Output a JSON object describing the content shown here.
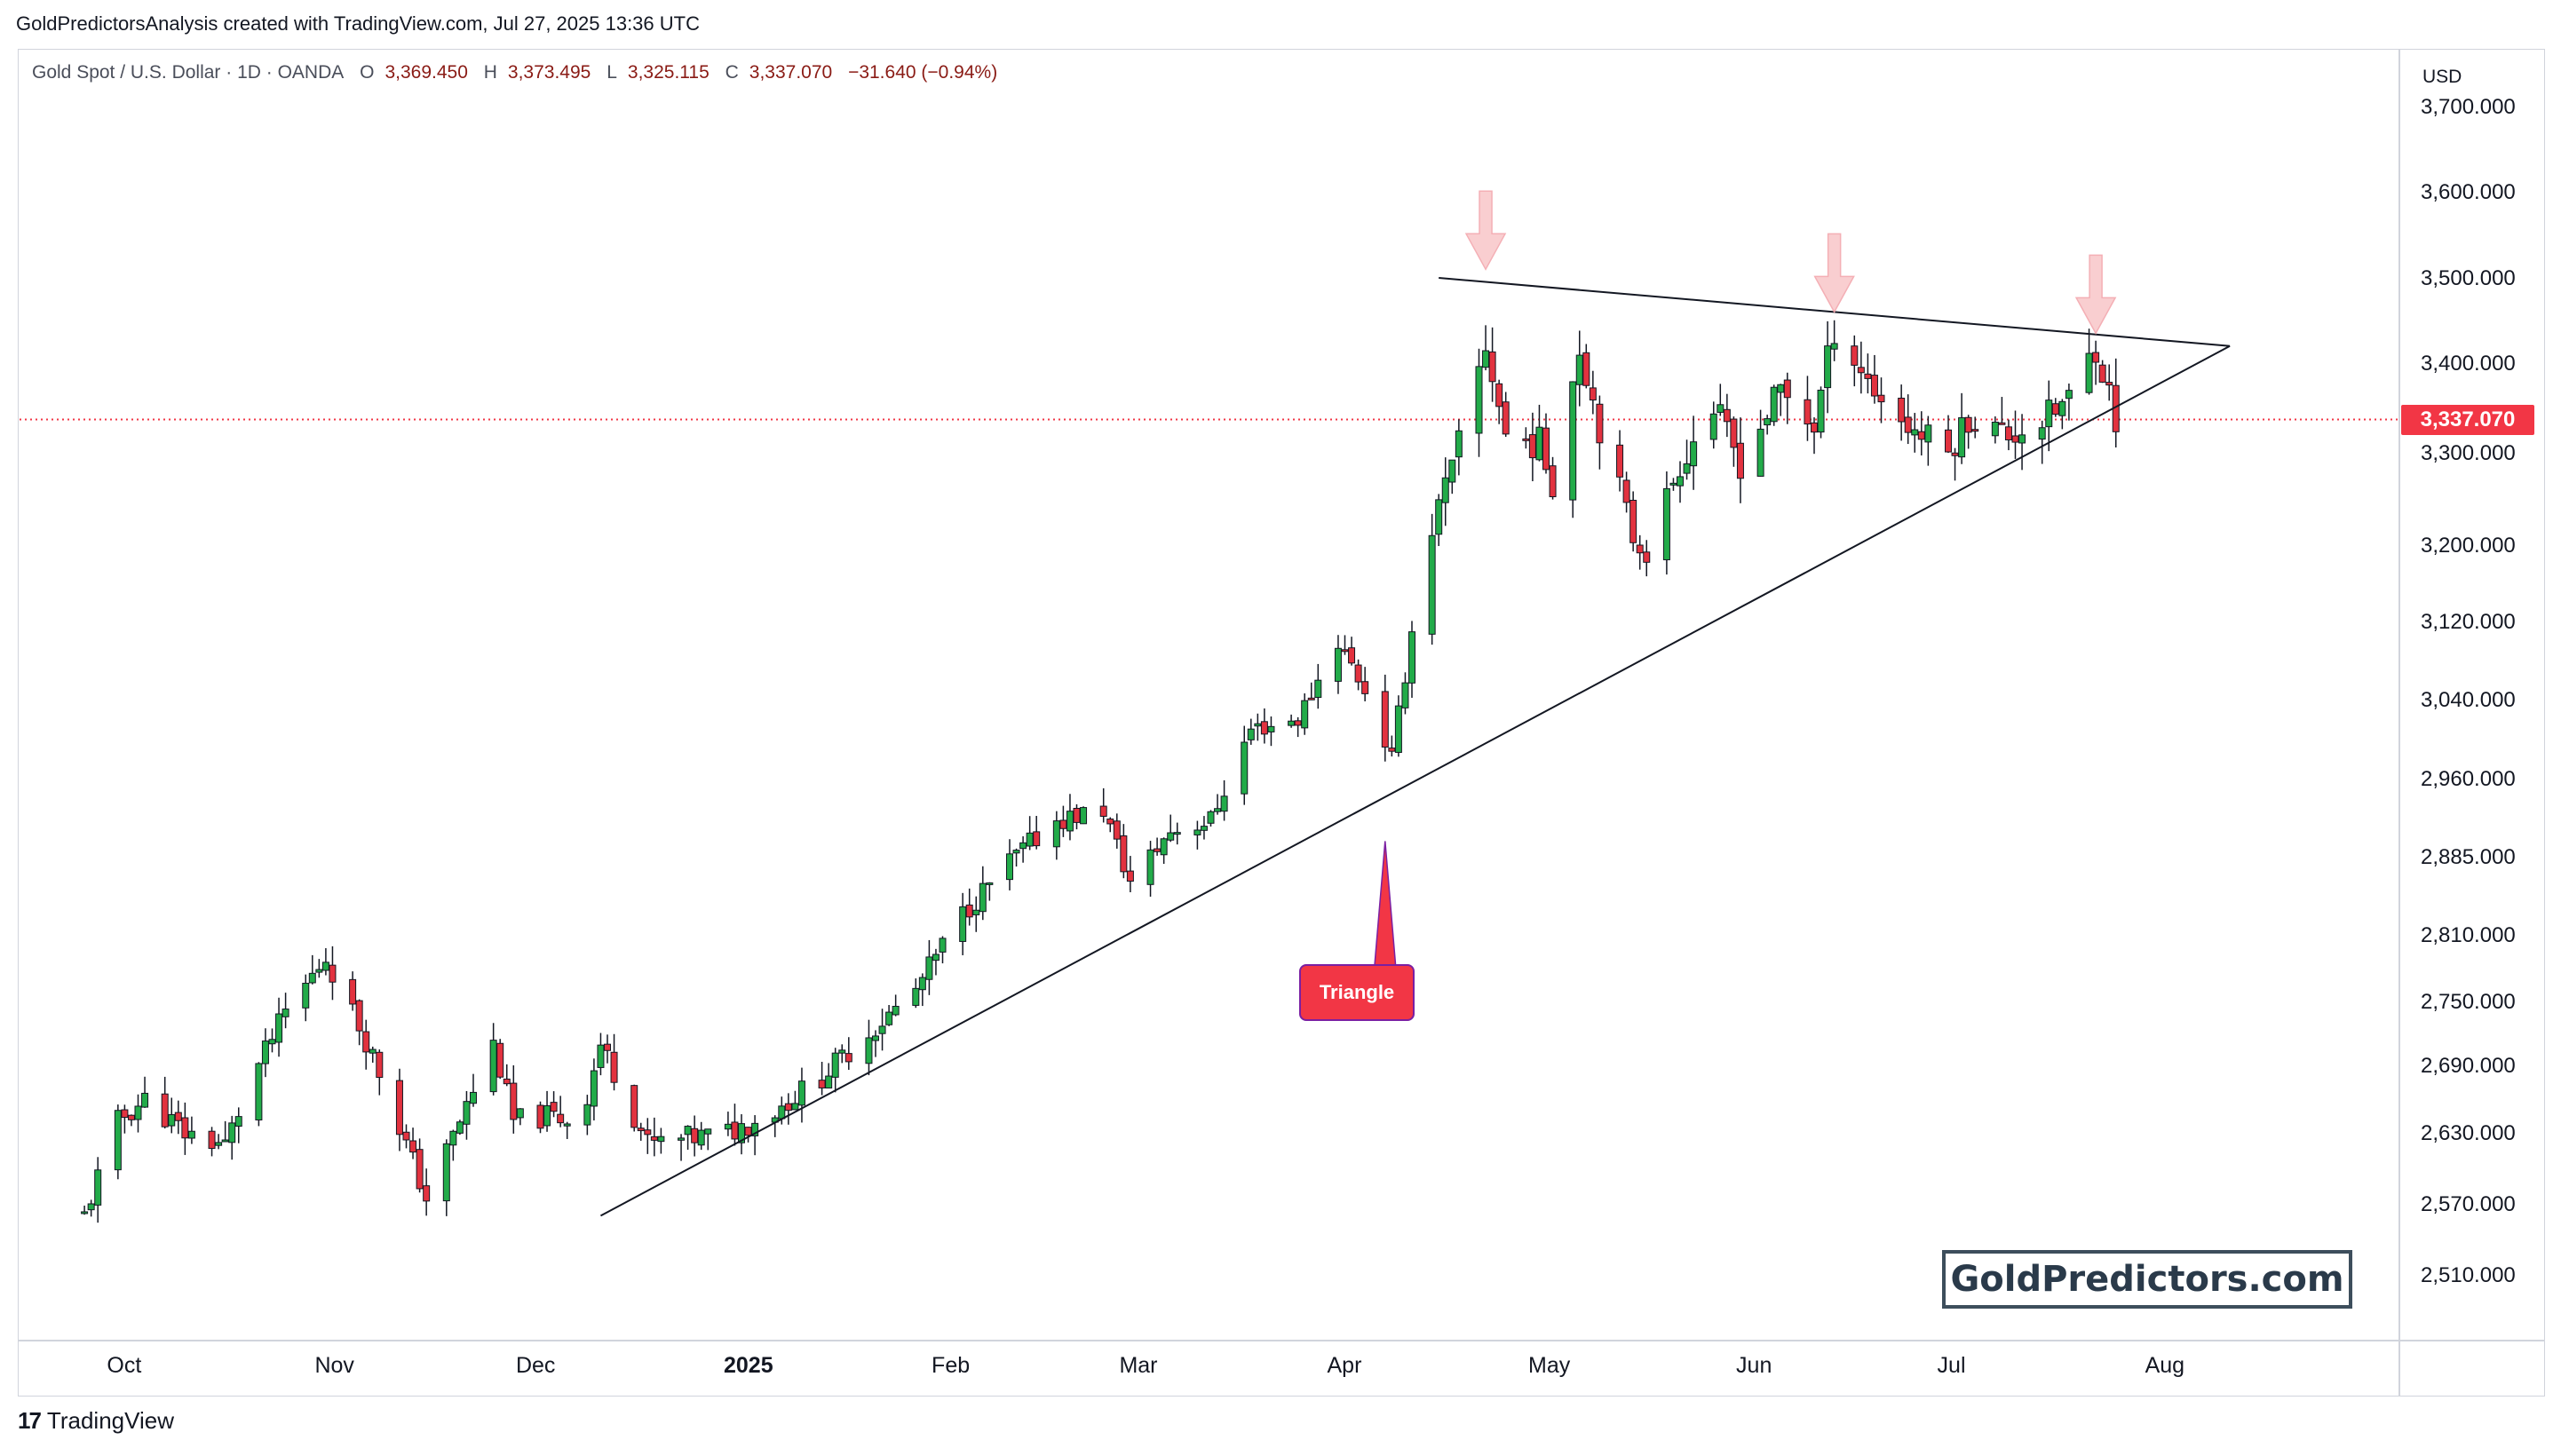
{
  "header": {
    "credit": "GoldPredictorsAnalysis created with TradingView.com, Jul 27, 2025 13:36 UTC"
  },
  "legend": {
    "symbol": "Gold Spot / U.S. Dollar · 1D · OANDA",
    "open_label": "O",
    "open": "3,369.450",
    "high_label": "H",
    "high": "3,373.495",
    "low_label": "L",
    "low": "3,325.115",
    "close_label": "C",
    "close": "3,337.070",
    "change": "−31.640 (−0.94%)"
  },
  "axis": {
    "currency": "USD",
    "current_price": "3,337.070"
  },
  "branding": {
    "watermark": "GoldPredictors.com",
    "platform": "TradingView",
    "platform_mark": "17"
  },
  "colors": {
    "up": "#22ab49",
    "down": "#e2323f",
    "price_line": "#f23645",
    "trendline": "#131722",
    "arrow": "#f9c9cc"
  },
  "chart_data": {
    "type": "candlestick",
    "title": "Gold Spot / U.S. Dollar · 1D · OANDA",
    "y_ticks": [
      3700,
      3600,
      3500,
      3400,
      3300,
      3200,
      3120,
      3040,
      2960,
      2885,
      2810,
      2750,
      2690,
      2630,
      2570,
      2510
    ],
    "y_tick_labels": [
      "3,700.000",
      "3,600.000",
      "3,500.000",
      "3,400.000",
      "3,300.000",
      "3,200.000",
      "3,120.000",
      "3,040.000",
      "2,960.000",
      "2,885.000",
      "2,810.000",
      "2,750.000",
      "2,690.000",
      "2,630.000",
      "2,570.000",
      "2,510.000"
    ],
    "x_tick_labels": [
      "Oct",
      "Nov",
      "Dec",
      "2025",
      "Feb",
      "Mar",
      "Apr",
      "May",
      "Jun",
      "Jul",
      "Aug"
    ],
    "x_tick_dates": [
      "2024-10-01",
      "2024-11-01",
      "2024-12-01",
      "2025-01-01",
      "2025-02-01",
      "2025-03-01",
      "2025-04-01",
      "2025-05-01",
      "2025-06-01",
      "2025-07-01",
      "2025-08-01"
    ],
    "date_range": [
      "2024-09-25",
      "2025-07-25"
    ],
    "current_price": 3337.07,
    "annotations": [
      {
        "text": "Triangle",
        "date": "2025-04-07",
        "price": 2900
      }
    ],
    "trendlines": [
      {
        "name": "resistance",
        "from": {
          "date": "2025-04-15",
          "price": 3500
        },
        "to": {
          "date": "2025-08-11",
          "price": 3420
        }
      },
      {
        "name": "support",
        "from": {
          "date": "2024-12-11",
          "price": 2560
        },
        "to": {
          "date": "2025-08-11",
          "price": 3420
        }
      }
    ],
    "arrows": [
      {
        "date": "2025-04-22",
        "price": 3510
      },
      {
        "date": "2025-06-13",
        "price": 3460
      },
      {
        "date": "2025-07-22",
        "price": 3435
      }
    ],
    "path": [
      [
        "2024-09-25",
        2560
      ],
      [
        "2024-09-30",
        2640
      ],
      [
        "2024-10-04",
        2660
      ],
      [
        "2024-10-10",
        2630
      ],
      [
        "2024-10-16",
        2620
      ],
      [
        "2024-10-21",
        2690
      ],
      [
        "2024-10-25",
        2740
      ],
      [
        "2024-10-31",
        2790
      ],
      [
        "2024-11-04",
        2740
      ],
      [
        "2024-11-07",
        2700
      ],
      [
        "2024-11-12",
        2620
      ],
      [
        "2024-11-15",
        2575
      ],
      [
        "2024-11-20",
        2640
      ],
      [
        "2024-11-25",
        2710
      ],
      [
        "2024-11-28",
        2640
      ],
      [
        "2024-12-03",
        2645
      ],
      [
        "2024-12-08",
        2640
      ],
      [
        "2024-12-11",
        2710
      ],
      [
        "2024-12-18",
        2620
      ],
      [
        "2024-12-24",
        2625
      ],
      [
        "2024-12-30",
        2630
      ],
      [
        "2025-01-06",
        2650
      ],
      [
        "2025-01-13",
        2680
      ],
      [
        "2025-01-20",
        2720
      ],
      [
        "2025-01-27",
        2760
      ],
      [
        "2025-02-03",
        2830
      ],
      [
        "2025-02-10",
        2880
      ],
      [
        "2025-02-17",
        2920
      ],
      [
        "2025-02-24",
        2930
      ],
      [
        "2025-02-28",
        2860
      ],
      [
        "2025-03-06",
        2910
      ],
      [
        "2025-03-12",
        2920
      ],
      [
        "2025-03-18",
        3010
      ],
      [
        "2025-03-25",
        3020
      ],
      [
        "2025-03-31",
        3100
      ],
      [
        "2025-04-04",
        3050
      ],
      [
        "2025-04-08",
        2980
      ],
      [
        "2025-04-11",
        3110
      ],
      [
        "2025-04-14",
        3220
      ],
      [
        "2025-04-17",
        3280
      ],
      [
        "2025-04-22",
        3420
      ],
      [
        "2025-04-25",
        3320
      ],
      [
        "2025-04-30",
        3310
      ],
      [
        "2025-05-02",
        3270
      ],
      [
        "2025-05-06",
        3420
      ],
      [
        "2025-05-09",
        3330
      ],
      [
        "2025-05-14",
        3210
      ],
      [
        "2025-05-16",
        3190
      ],
      [
        "2025-05-21",
        3290
      ],
      [
        "2025-05-26",
        3350
      ],
      [
        "2025-05-30",
        3290
      ],
      [
        "2025-06-05",
        3370
      ],
      [
        "2025-06-10",
        3330
      ],
      [
        "2025-06-13",
        3440
      ],
      [
        "2025-06-19",
        3370
      ],
      [
        "2025-06-24",
        3330
      ],
      [
        "2025-06-30",
        3300
      ],
      [
        "2025-07-03",
        3340
      ],
      [
        "2025-07-09",
        3320
      ],
      [
        "2025-07-15",
        3340
      ],
      [
        "2025-07-18",
        3360
      ],
      [
        "2025-07-22",
        3420
      ],
      [
        "2025-07-25",
        3337
      ]
    ]
  }
}
